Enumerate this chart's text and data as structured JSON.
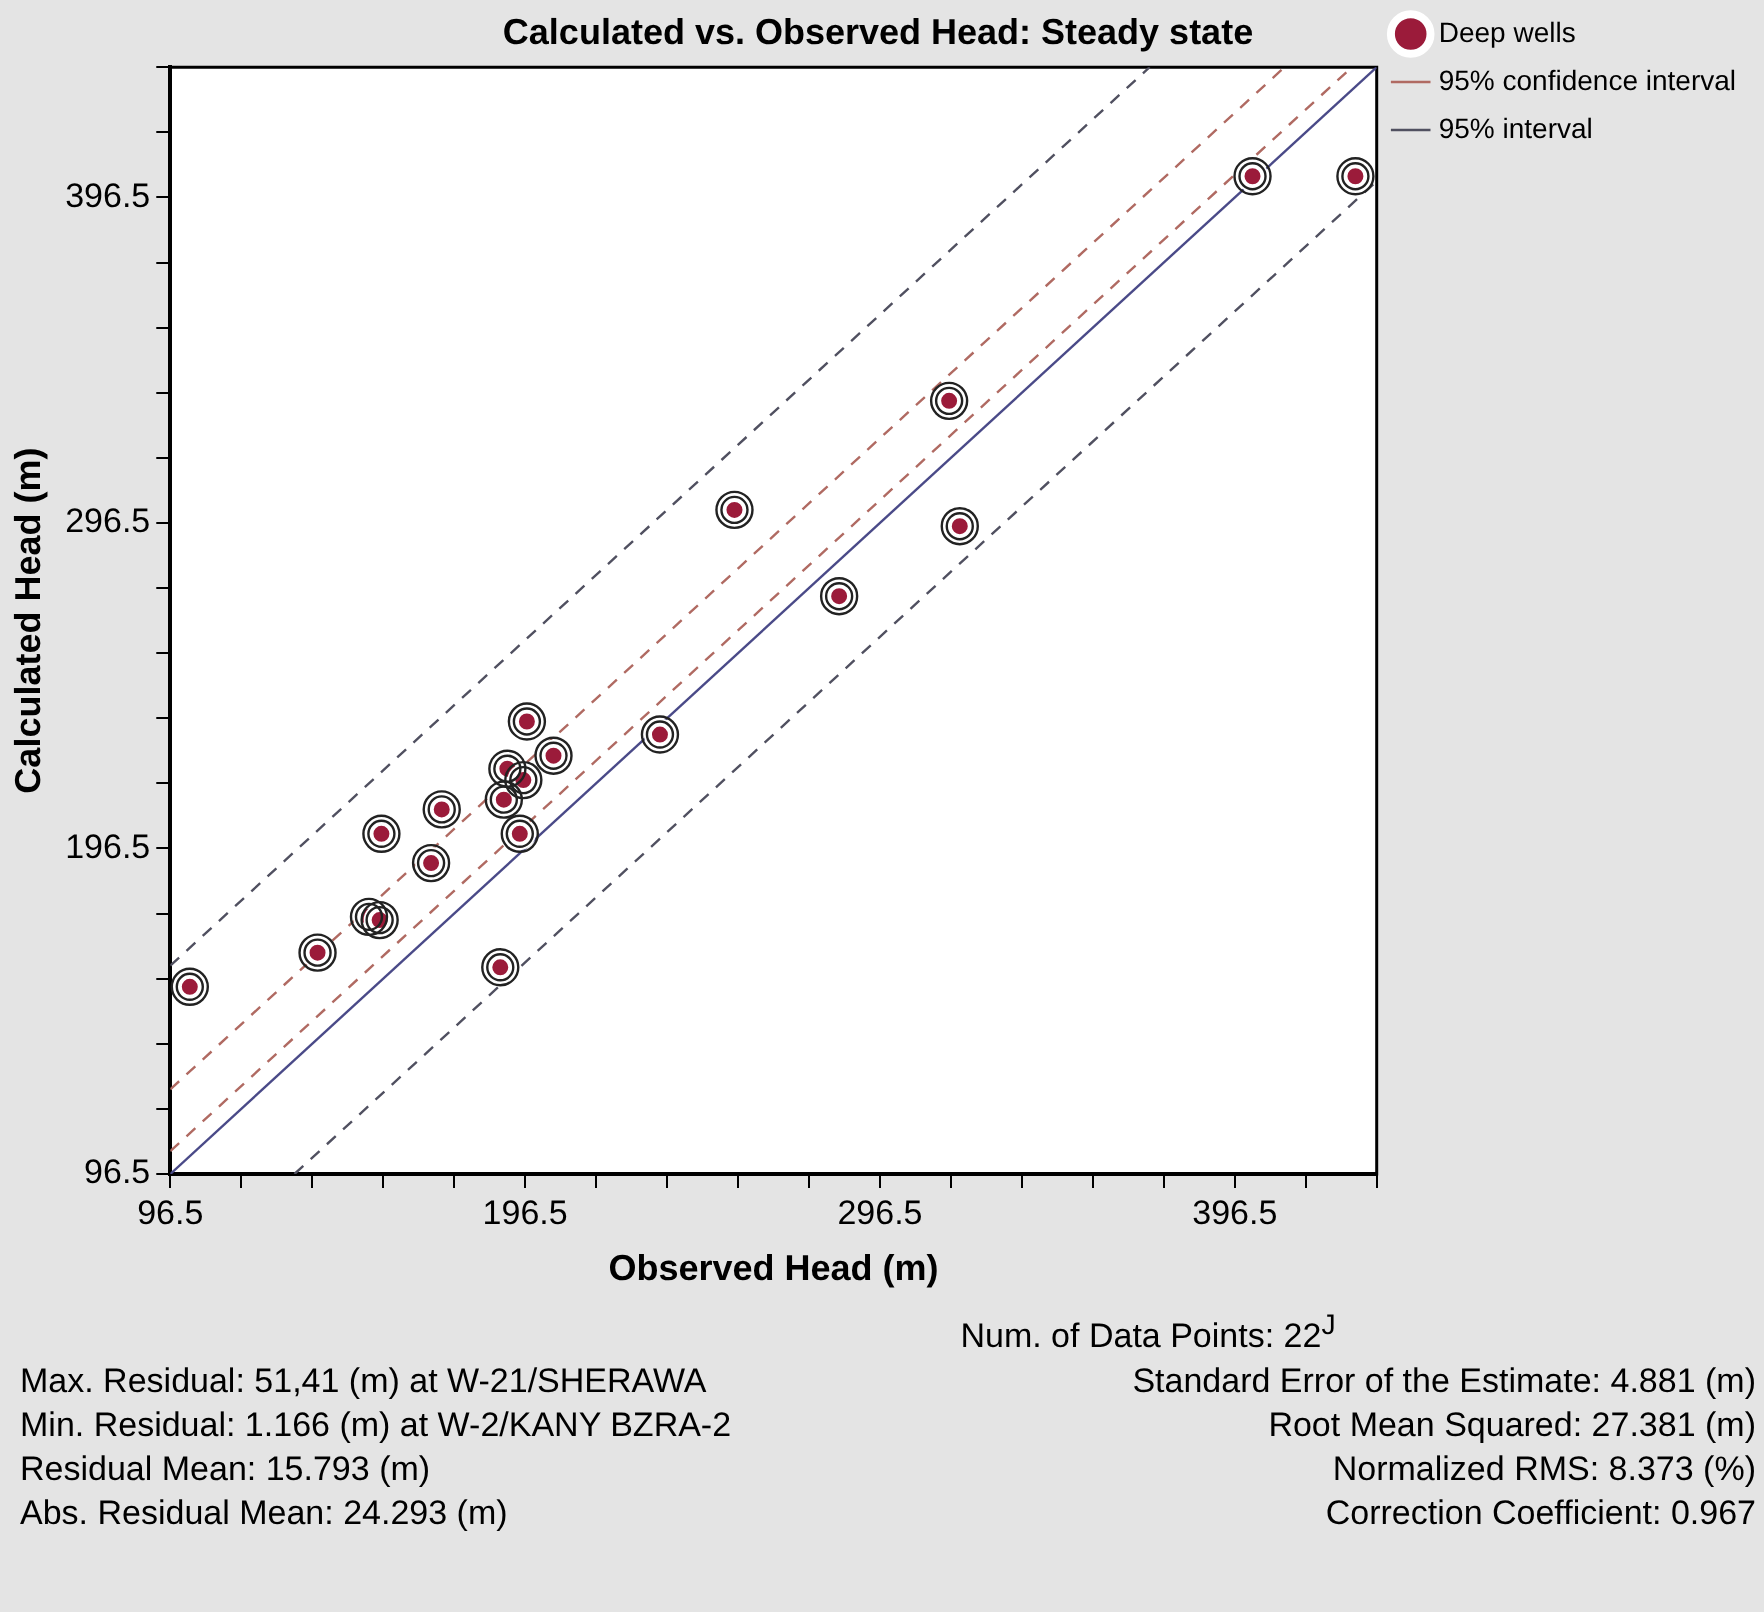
{
  "chart_data": {
    "type": "scatter",
    "title": "Calculated vs. Observed Head: Steady state",
    "xlabel": "Observed Head (m)",
    "ylabel": "Calculated Head (m)",
    "xlim": [
      96.5,
      436.5
    ],
    "ylim": [
      96.5,
      436.5
    ],
    "xticks": [
      96.5,
      {
        "value": 116.5,
        "label": null
      },
      {
        "value": 136.5,
        "label": null
      },
      {
        "value": 156.5,
        "label": null
      },
      {
        "value": 176.5,
        "label": null
      },
      196.5,
      {
        "value": 216.5,
        "label": null
      },
      {
        "value": 236.5,
        "label": null
      },
      {
        "value": 256.5,
        "label": null
      },
      {
        "value": 276.5,
        "label": null
      },
      296.5,
      {
        "value": 316.5,
        "label": null
      },
      {
        "value": 336.5,
        "label": null
      },
      {
        "value": 356.5,
        "label": null
      },
      {
        "value": 376.5,
        "label": null
      },
      396.5,
      {
        "value": 416.5,
        "label": null
      },
      {
        "value": 436.5,
        "label": null
      }
    ],
    "yticks": [
      96.5,
      {
        "value": 116.5,
        "label": null
      },
      {
        "value": 136.5,
        "label": null
      },
      {
        "value": 156.5,
        "label": null
      },
      {
        "value": 176.5,
        "label": null
      },
      196.5,
      {
        "value": 216.5,
        "label": null
      },
      {
        "value": 236.5,
        "label": null
      },
      {
        "value": 256.5,
        "label": null
      },
      {
        "value": 276.5,
        "label": null
      },
      296.5,
      {
        "value": 316.5,
        "label": null
      },
      {
        "value": 336.5,
        "label": null
      },
      {
        "value": 356.5,
        "label": null
      },
      {
        "value": 376.5,
        "label": null
      },
      396.5,
      {
        "value": 416.5,
        "label": null
      },
      {
        "value": 436.5,
        "label": null
      }
    ],
    "grid": false,
    "legend": "top right",
    "series": [
      {
        "name": "Deep wells",
        "marker": "circle",
        "color": "#9b1b3a",
        "x": [
          401.5,
          430.5,
          316,
          255.5,
          319,
          285,
          102,
          138,
          152.5,
          155.5,
          156,
          170,
          173,
          189.5,
          190.5,
          191.5,
          196,
          195,
          197,
          204.5,
          234.5
        ],
        "values": [
          403,
          403,
          334,
          300.5,
          295.5,
          274,
          154,
          164.5,
          175.5,
          174.5,
          201,
          192,
          208.5,
          160,
          211.5,
          221,
          217.5,
          201,
          235.5,
          225,
          231.5
        ]
      },
      {
        "name": "95% confidence interval",
        "type": "line",
        "line_style": "dashed",
        "color": "#b06a62",
        "x": [
          96.5,
          410.5
        ],
        "values": [
          122.5,
          436.5
        ]
      },
      {
        "type": "line",
        "line_style": "dashed",
        "color": "#b06a62",
        "x": [
          96.5,
          429.5
        ],
        "values": [
          103.5,
          436.5
        ]
      },
      {
        "name": "95% interval",
        "type": "line",
        "line_style": "dashed",
        "color": "#505060",
        "x": [
          96.5,
          372.5
        ],
        "values": [
          160.5,
          436.5
        ]
      },
      {
        "type": "line",
        "line_style": "dashed",
        "color": "#505060",
        "x": [
          131.5,
          436.5
        ],
        "values": [
          96.5,
          401.5
        ]
      },
      {
        "type": "line",
        "line_style": "solid",
        "color": "#4a4a88",
        "x": [
          96.5,
          436.5
        ],
        "values": [
          96.5,
          436.5
        ]
      }
    ],
    "annotations": [
      "Num. of Data Points: 22$^{J}$",
      "Max. Residual: 51,41 (m) at W-21/SHERAWA",
      "Standard Error of the Estimate: 4.881 (m)",
      "Min. Residual: 1.166 (m) at W-2/KANY BZRA-2",
      "Root Mean Squared: 27.381 (m)",
      "Residual Mean: 15.793 (m)",
      "Normalized RMS: 8.373 (%)",
      "Abs. Residual Mean: 24.293 (m)",
      "Correction Coefficient: 0.967"
    ]
  }
}
